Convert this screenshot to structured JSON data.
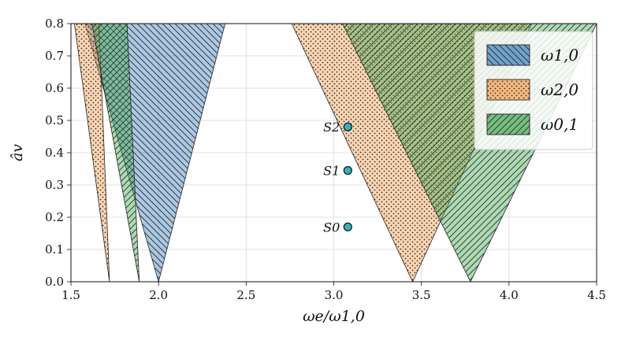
{
  "chart_data": {
    "type": "area",
    "xlabel": "ωe/ω1,0",
    "ylabel": "âv",
    "xlim": [
      1.5,
      4.5
    ],
    "ylim": [
      0.0,
      0.8
    ],
    "xticks": [
      "1.5",
      "2.0",
      "2.5",
      "3.0",
      "3.5",
      "4.0",
      "4.5"
    ],
    "yticks": [
      "0.0",
      "0.1",
      "0.2",
      "0.3",
      "0.4",
      "0.5",
      "0.6",
      "0.7",
      "0.8"
    ],
    "grid": true,
    "legend_position": "top-right",
    "series": [
      {
        "name": "ω1,0",
        "color": "#4a86b9",
        "hatch": "backslash",
        "regions": [
          [
            [
              2.0,
              0.0
            ],
            [
              1.58,
              0.8
            ],
            [
              2.38,
              0.8
            ]
          ]
        ]
      },
      {
        "name": "ω2,0",
        "color": "#f5a55a",
        "hatch": "dots",
        "regions": [
          [
            [
              1.72,
              0.0
            ],
            [
              1.52,
              0.8
            ],
            [
              1.66,
              0.8
            ]
          ],
          [
            [
              3.45,
              0.0
            ],
            [
              2.76,
              0.8
            ],
            [
              4.13,
              0.8
            ]
          ]
        ]
      },
      {
        "name": "ω0,1",
        "color": "#4fa85a",
        "hatch": "slash",
        "regions": [
          [
            [
              1.89,
              0.0
            ],
            [
              1.62,
              0.8
            ],
            [
              1.82,
              0.8
            ]
          ],
          [
            [
              3.78,
              0.0
            ],
            [
              3.05,
              0.8
            ],
            [
              4.5,
              0.8
            ]
          ]
        ]
      }
    ],
    "points": [
      {
        "label": "S0",
        "x": 3.08,
        "y": 0.17
      },
      {
        "label": "S1",
        "x": 3.08,
        "y": 0.345
      },
      {
        "label": "S2",
        "x": 3.08,
        "y": 0.48
      }
    ],
    "point_color": "#2bb5c0"
  }
}
